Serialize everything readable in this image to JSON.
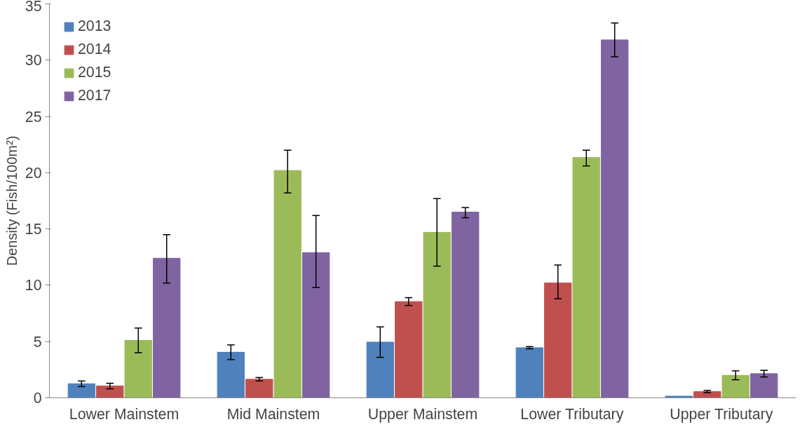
{
  "chart_data": {
    "type": "bar",
    "ylabel": "Density (Fish/100m²)",
    "categories": [
      "Lower Mainstem",
      "Mid Mainstem",
      "Upper Mainstem",
      "Lower Tributary",
      "Upper Tributary"
    ],
    "series": [
      {
        "name": "2013",
        "color": "#4f81bd",
        "values": [
          1.25,
          4.05,
          4.95,
          4.45,
          0.15
        ],
        "errors": [
          [
            1.0,
            1.5
          ],
          [
            3.4,
            4.7
          ],
          [
            3.6,
            6.3
          ],
          [
            4.35,
            4.55
          ],
          null
        ]
      },
      {
        "name": "2014",
        "color": "#c0504d",
        "values": [
          1.05,
          1.65,
          8.55,
          10.2,
          0.55
        ],
        "errors": [
          [
            0.8,
            1.3
          ],
          [
            1.5,
            1.8
          ],
          [
            8.2,
            8.9
          ],
          [
            8.8,
            11.8
          ],
          [
            0.45,
            0.65
          ]
        ]
      },
      {
        "name": "2015",
        "color": "#9bbb59",
        "values": [
          5.1,
          20.2,
          14.7,
          21.35,
          2.0
        ],
        "errors": [
          [
            4.0,
            6.2
          ],
          [
            18.2,
            22.0
          ],
          [
            11.7,
            17.7
          ],
          [
            20.6,
            22.0
          ],
          [
            1.6,
            2.4
          ]
        ]
      },
      {
        "name": "2017",
        "color": "#8064a2",
        "values": [
          12.4,
          12.9,
          16.5,
          31.8,
          2.15
        ],
        "errors": [
          [
            10.2,
            14.5
          ],
          [
            9.8,
            16.2
          ],
          [
            16.0,
            16.9
          ],
          [
            30.3,
            33.3
          ],
          [
            1.85,
            2.45
          ]
        ]
      }
    ],
    "ylim": [
      0,
      35
    ],
    "yticks": [
      0,
      5,
      10,
      15,
      20,
      25,
      30,
      35
    ],
    "grid": false,
    "legend": "top left"
  }
}
